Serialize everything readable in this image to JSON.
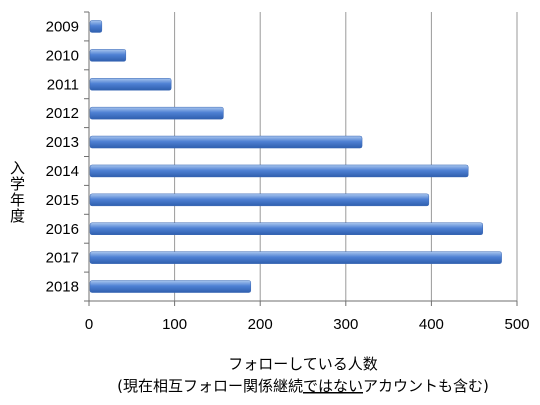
{
  "chart_data": {
    "type": "bar",
    "orientation": "horizontal",
    "categories": [
      "2009",
      "2010",
      "2011",
      "2012",
      "2013",
      "2014",
      "2015",
      "2016",
      "2017",
      "2018"
    ],
    "values": [
      15,
      43,
      96,
      157,
      319,
      443,
      397,
      460,
      482,
      189
    ],
    "xlim": [
      0,
      500
    ],
    "xticks": [
      "0",
      "100",
      "200",
      "300",
      "400",
      "500"
    ],
    "ylabel": "入学年度",
    "xlabel_line1": "フォローしている人数",
    "xlabel_line2_prefix": "(現在相互フォロー関係継続",
    "xlabel_line2_underlined": "ではない",
    "xlabel_line2_suffix": "アカウントも含む)",
    "grid": "vertical",
    "legend": "none",
    "colors": {
      "bar_top": "#a9c6ee",
      "bar_mid": "#4f81d4",
      "bar_bottom": "#2f5fae",
      "grid": "#9a9a9a",
      "axis": "#6f6f6f"
    }
  }
}
